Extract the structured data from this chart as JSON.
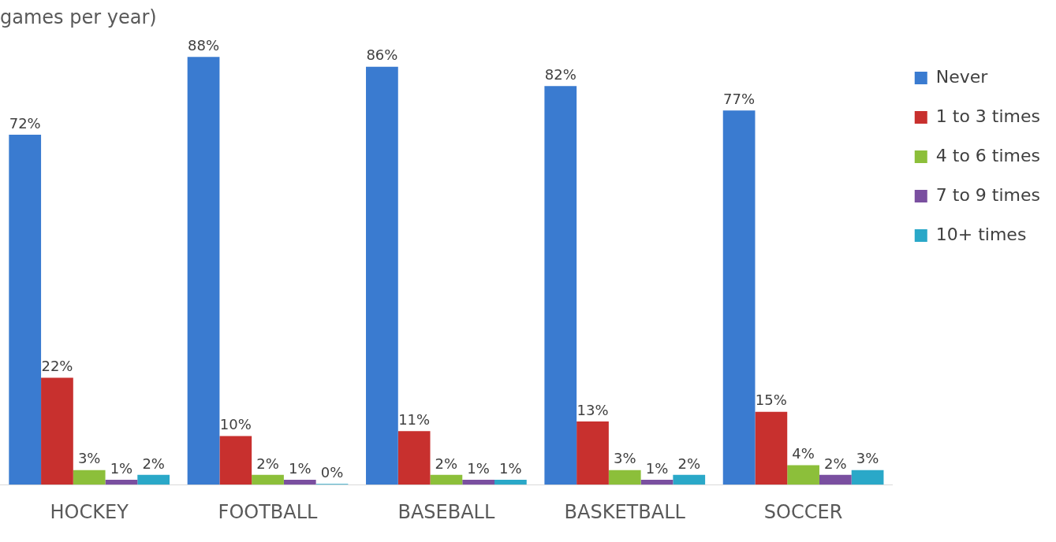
{
  "chart_data": {
    "type": "bar",
    "subtitle": "games per year)",
    "categories": [
      "HOCKEY",
      "FOOTBALL",
      "BASEBALL",
      "BASKETBALL",
      "SOCCER"
    ],
    "series": [
      {
        "name": "Never",
        "color": "#3a7bd0",
        "values": [
          72,
          88,
          86,
          82,
          77
        ],
        "value_labels": [
          "72%",
          "88%",
          "86%",
          "82%",
          "77%"
        ]
      },
      {
        "name": "1 to 3 times",
        "color": "#c8302e",
        "values": [
          22,
          10,
          11,
          13,
          15
        ],
        "value_labels": [
          "22%",
          "10%",
          "11%",
          "13%",
          "15%"
        ]
      },
      {
        "name": "4 to 6 times",
        "color": "#8cbf3a",
        "values": [
          3,
          2,
          2,
          3,
          4
        ],
        "value_labels": [
          "3%",
          "2%",
          "2%",
          "3%",
          "4%"
        ]
      },
      {
        "name": "7 to 9 times",
        "color": "#7a4fa0",
        "values": [
          1,
          1,
          1,
          1,
          2
        ],
        "value_labels": [
          "1%",
          "1%",
          "1%",
          "1%",
          "2%"
        ]
      },
      {
        "name": "10+ times",
        "color": "#2aa8c8",
        "values": [
          2,
          0,
          1,
          2,
          3
        ],
        "value_labels": [
          "2%",
          "0%",
          "1%",
          "2%",
          "3%"
        ]
      }
    ],
    "legend": "top right",
    "grid": false
  }
}
